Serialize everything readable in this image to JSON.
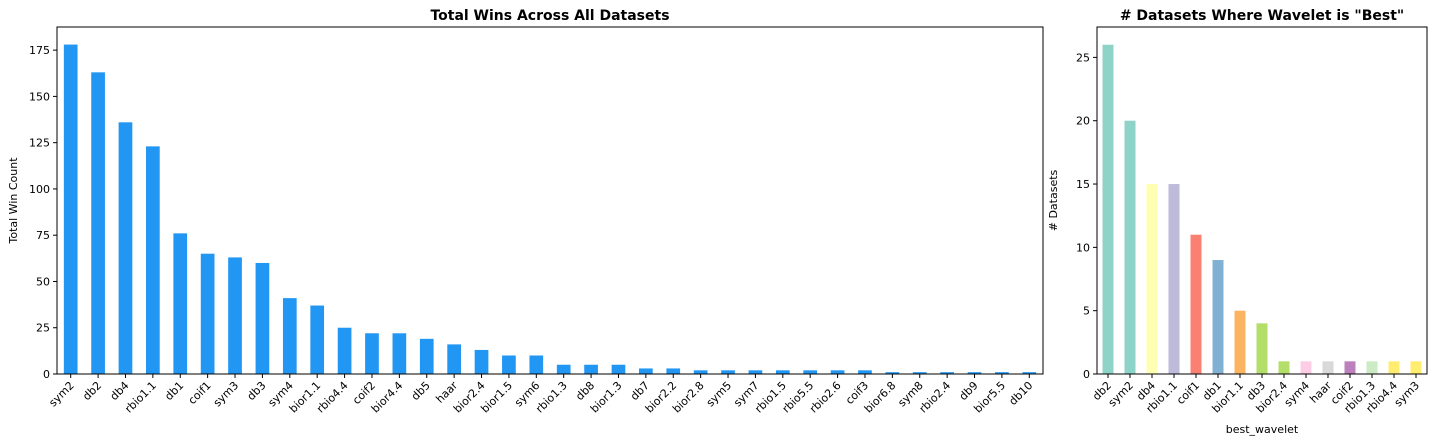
{
  "chart_data": [
    {
      "type": "bar",
      "title": "Total Wins Across All Datasets",
      "ylabel": "Total Win Count",
      "categories": [
        "sym2",
        "db2",
        "db4",
        "rbio1.1",
        "db1",
        "coif1",
        "sym3",
        "db3",
        "sym4",
        "bior1.1",
        "rbio4.4",
        "coif2",
        "bior4.4",
        "db5",
        "haar",
        "bior2.4",
        "bior1.5",
        "sym6",
        "rbio1.3",
        "db8",
        "bior1.3",
        "db7",
        "bior2.2",
        "bior2.8",
        "sym5",
        "sym7",
        "rbio1.5",
        "rbio5.5",
        "rbio2.6",
        "coif3",
        "bior6.8",
        "sym8",
        "rbio2.4",
        "db9",
        "bior5.5",
        "db10"
      ],
      "values": [
        178,
        163,
        136,
        123,
        76,
        65,
        63,
        60,
        41,
        37,
        25,
        22,
        22,
        19,
        16,
        13,
        10,
        10,
        5,
        5,
        5,
        3,
        3,
        2,
        2,
        2,
        2,
        2,
        2,
        2,
        1,
        1,
        1,
        1,
        1,
        1
      ],
      "color": "#2196f3",
      "ylim": [
        0,
        187.5
      ],
      "yticks": [
        0,
        25,
        50,
        75,
        100,
        125,
        150,
        175
      ]
    },
    {
      "type": "bar",
      "title": "# Datasets Where Wavelet is \"Best\"",
      "ylabel": "# Datasets",
      "xlabel": "best_wavelet",
      "categories": [
        "db2",
        "sym2",
        "db4",
        "rbio1.1",
        "coif1",
        "db1",
        "bior1.1",
        "db3",
        "bior2.4",
        "sym4",
        "haar",
        "coif2",
        "rbio1.3",
        "rbio4.4",
        "sym3"
      ],
      "values": [
        26,
        20,
        15,
        15,
        11,
        9,
        5,
        4,
        1,
        1,
        1,
        1,
        1,
        1,
        1
      ],
      "colors": [
        "#8dd3c7",
        "#8dd3c7",
        "#ffffb3",
        "#bebada",
        "#fb8072",
        "#80b1d3",
        "#fdb462",
        "#b3de69",
        "#b3de69",
        "#fccde5",
        "#d9d9d9",
        "#bc80bd",
        "#ccebc5",
        "#ffed6f",
        "#ffed6f"
      ],
      "ylim": [
        0,
        27.4
      ],
      "yticks": [
        0,
        5,
        10,
        15,
        20,
        25
      ]
    }
  ]
}
